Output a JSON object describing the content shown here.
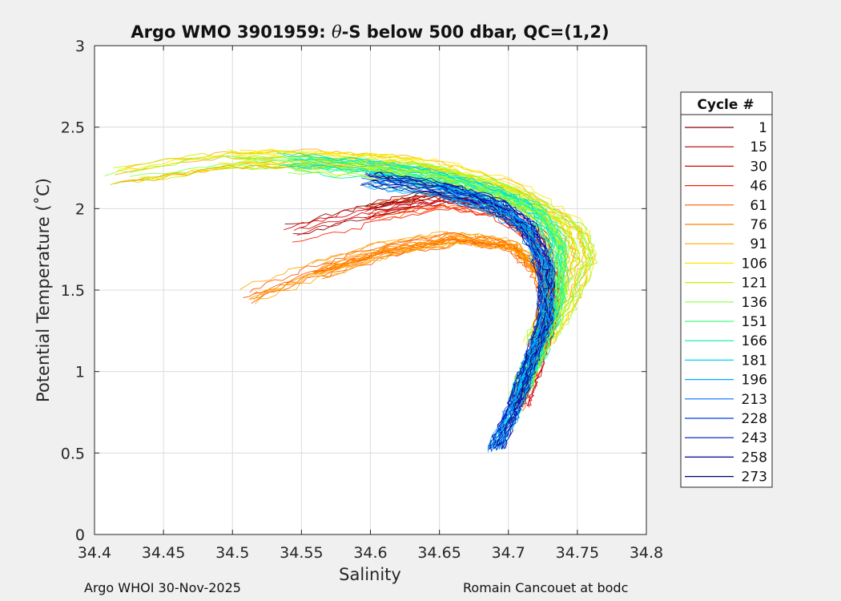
{
  "chart_data": {
    "type": "line",
    "title_main": "Argo WMO 3901959: ",
    "title_theta": "θ",
    "title_rest": "-S below 500 dbar,  QC=(1,2)",
    "xlabel": "Salinity",
    "ylabel": "Potential Temperature (˚C)",
    "xlim": [
      34.4,
      34.8
    ],
    "ylim": [
      0,
      3
    ],
    "x_ticks": [
      "34.4",
      "34.45",
      "34.5",
      "34.55",
      "34.6",
      "34.65",
      "34.7",
      "34.75",
      "34.8"
    ],
    "y_ticks": [
      "0",
      "0.5",
      "1",
      "1.5",
      "2",
      "2.5",
      "3"
    ],
    "grid": true,
    "legend": {
      "title": "Cycle #",
      "placement": "right-outside",
      "entries": [
        {
          "label": "1",
          "color": "#800000"
        },
        {
          "label": "15",
          "color": "#aa0000"
        },
        {
          "label": "30",
          "color": "#d40000"
        },
        {
          "label": "46",
          "color": "#ff1a00"
        },
        {
          "label": "61",
          "color": "#ff5500"
        },
        {
          "label": "76",
          "color": "#ff8000"
        },
        {
          "label": "91",
          "color": "#ffaa00"
        },
        {
          "label": "106",
          "color": "#ffe600"
        },
        {
          "label": "121",
          "color": "#c8f000"
        },
        {
          "label": "136",
          "color": "#8cff40"
        },
        {
          "label": "151",
          "color": "#40ff80"
        },
        {
          "label": "166",
          "color": "#00f0b0"
        },
        {
          "label": "181",
          "color": "#00d4f0"
        },
        {
          "label": "196",
          "color": "#00aaff"
        },
        {
          "label": "213",
          "color": "#0070ff"
        },
        {
          "label": "228",
          "color": "#0040e0"
        },
        {
          "label": "243",
          "color": "#0010c0"
        },
        {
          "label": "258",
          "color": "#000099"
        },
        {
          "label": "273",
          "color": "#000070"
        }
      ]
    },
    "curve_shapes": {
      "green_group": [
        [
          34.54,
          2.28
        ],
        [
          34.6,
          2.24
        ],
        [
          34.65,
          2.18
        ],
        [
          34.69,
          2.1
        ],
        [
          34.72,
          1.98
        ],
        [
          34.735,
          1.78
        ],
        [
          34.735,
          1.45
        ],
        [
          34.72,
          1.1
        ],
        [
          34.705,
          0.82
        ]
      ],
      "blue_group": [
        [
          34.6,
          2.18
        ],
        [
          34.65,
          2.12
        ],
        [
          34.69,
          2.02
        ],
        [
          34.715,
          1.88
        ],
        [
          34.728,
          1.62
        ],
        [
          34.728,
          1.32
        ],
        [
          34.715,
          1.02
        ],
        [
          34.705,
          0.78
        ],
        [
          34.69,
          0.5
        ]
      ],
      "yellow_group": [
        [
          34.42,
          2.2
        ],
        [
          34.5,
          2.3
        ],
        [
          34.58,
          2.3
        ],
        [
          34.64,
          2.26
        ],
        [
          34.7,
          2.12
        ],
        [
          34.745,
          1.88
        ],
        [
          34.752,
          1.7
        ],
        [
          34.74,
          1.45
        ],
        [
          34.72,
          1.15
        ]
      ],
      "orange_group": [
        [
          34.51,
          1.46
        ],
        [
          34.56,
          1.62
        ],
        [
          34.61,
          1.75
        ],
        [
          34.66,
          1.82
        ],
        [
          34.7,
          1.78
        ],
        [
          34.72,
          1.62
        ],
        [
          34.73,
          1.4
        ],
        [
          34.725,
          1.2
        ],
        [
          34.715,
          1.02
        ]
      ],
      "red_group": [
        [
          34.54,
          1.85
        ],
        [
          34.6,
          1.98
        ],
        [
          34.65,
          2.06
        ],
        [
          34.69,
          2.0
        ],
        [
          34.72,
          1.82
        ],
        [
          34.73,
          1.55
        ],
        [
          34.725,
          1.25
        ],
        [
          34.715,
          0.98
        ],
        [
          34.705,
          0.76
        ]
      ]
    }
  },
  "footer": {
    "left": "Argo WHOI 30-Nov-2025",
    "right": "Romain Cancouet at bodc"
  }
}
